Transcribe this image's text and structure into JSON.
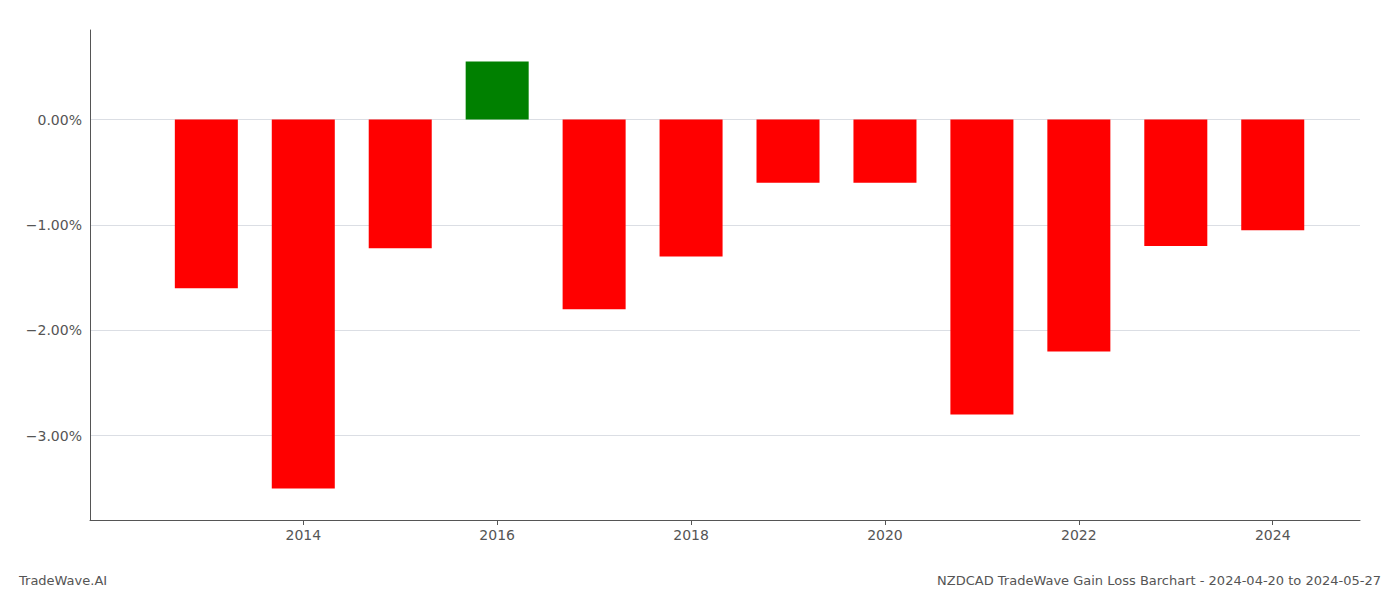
{
  "chart_data": {
    "type": "bar",
    "x": [
      2013,
      2014,
      2015,
      2016,
      2017,
      2018,
      2019,
      2020,
      2021,
      2022,
      2023,
      2024
    ],
    "values": [
      -1.6,
      -3.5,
      -1.22,
      0.55,
      -1.8,
      -1.3,
      -0.6,
      -0.6,
      -2.8,
      -2.2,
      -1.2,
      -1.05
    ],
    "colors": [
      "red",
      "red",
      "red",
      "green",
      "red",
      "red",
      "red",
      "red",
      "red",
      "red",
      "red",
      "red"
    ],
    "xlim": [
      2011.8,
      2024.9
    ],
    "xticks": [
      2014,
      2016,
      2018,
      2020,
      2022,
      2024
    ],
    "ylim": [
      -3.8,
      0.85
    ],
    "yticks": [
      {
        "value": 0.0,
        "label": "0.00%"
      },
      {
        "value": -1.0,
        "label": "−1.00%"
      },
      {
        "value": -2.0,
        "label": "−2.00%"
      },
      {
        "value": -3.0,
        "label": "−3.00%"
      }
    ],
    "grid": true,
    "annotations": [
      "TradeWave.AI",
      "NZDCAD TradeWave Gain Loss Barchart - 2024-04-20 to 2024-05-27"
    ]
  }
}
